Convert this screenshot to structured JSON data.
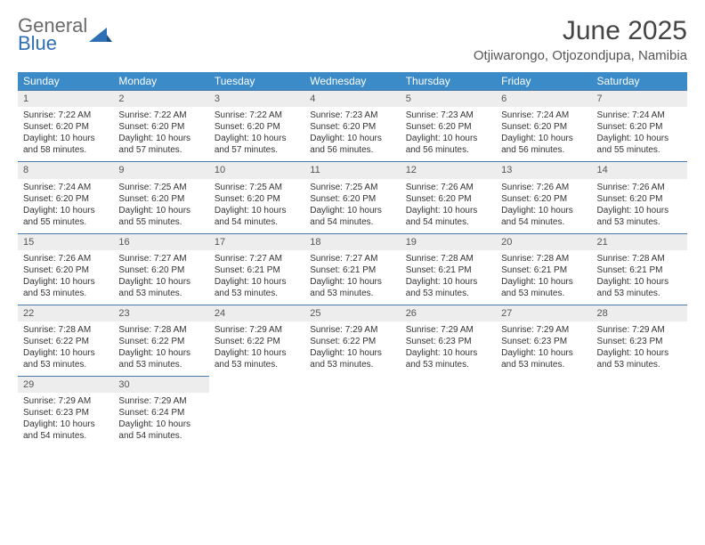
{
  "logo": {
    "text1": "General",
    "text2": "Blue"
  },
  "title": "June 2025",
  "subtitle": "Otjiwarongo, Otjozondjupa, Namibia",
  "colors": {
    "header_bg": "#3b8bc9",
    "header_text": "#ffffff",
    "daynum_bg": "#ededed",
    "daynum_border": "#4a79a8",
    "body_text": "#333333",
    "logo_gray": "#6a6a6a",
    "logo_blue": "#2f6fb5"
  },
  "weekdays": [
    "Sunday",
    "Monday",
    "Tuesday",
    "Wednesday",
    "Thursday",
    "Friday",
    "Saturday"
  ],
  "days": [
    {
      "num": "1",
      "sunrise": "Sunrise: 7:22 AM",
      "sunset": "Sunset: 6:20 PM",
      "daylight": "Daylight: 10 hours and 58 minutes."
    },
    {
      "num": "2",
      "sunrise": "Sunrise: 7:22 AM",
      "sunset": "Sunset: 6:20 PM",
      "daylight": "Daylight: 10 hours and 57 minutes."
    },
    {
      "num": "3",
      "sunrise": "Sunrise: 7:22 AM",
      "sunset": "Sunset: 6:20 PM",
      "daylight": "Daylight: 10 hours and 57 minutes."
    },
    {
      "num": "4",
      "sunrise": "Sunrise: 7:23 AM",
      "sunset": "Sunset: 6:20 PM",
      "daylight": "Daylight: 10 hours and 56 minutes."
    },
    {
      "num": "5",
      "sunrise": "Sunrise: 7:23 AM",
      "sunset": "Sunset: 6:20 PM",
      "daylight": "Daylight: 10 hours and 56 minutes."
    },
    {
      "num": "6",
      "sunrise": "Sunrise: 7:24 AM",
      "sunset": "Sunset: 6:20 PM",
      "daylight": "Daylight: 10 hours and 56 minutes."
    },
    {
      "num": "7",
      "sunrise": "Sunrise: 7:24 AM",
      "sunset": "Sunset: 6:20 PM",
      "daylight": "Daylight: 10 hours and 55 minutes."
    },
    {
      "num": "8",
      "sunrise": "Sunrise: 7:24 AM",
      "sunset": "Sunset: 6:20 PM",
      "daylight": "Daylight: 10 hours and 55 minutes."
    },
    {
      "num": "9",
      "sunrise": "Sunrise: 7:25 AM",
      "sunset": "Sunset: 6:20 PM",
      "daylight": "Daylight: 10 hours and 55 minutes."
    },
    {
      "num": "10",
      "sunrise": "Sunrise: 7:25 AM",
      "sunset": "Sunset: 6:20 PM",
      "daylight": "Daylight: 10 hours and 54 minutes."
    },
    {
      "num": "11",
      "sunrise": "Sunrise: 7:25 AM",
      "sunset": "Sunset: 6:20 PM",
      "daylight": "Daylight: 10 hours and 54 minutes."
    },
    {
      "num": "12",
      "sunrise": "Sunrise: 7:26 AM",
      "sunset": "Sunset: 6:20 PM",
      "daylight": "Daylight: 10 hours and 54 minutes."
    },
    {
      "num": "13",
      "sunrise": "Sunrise: 7:26 AM",
      "sunset": "Sunset: 6:20 PM",
      "daylight": "Daylight: 10 hours and 54 minutes."
    },
    {
      "num": "14",
      "sunrise": "Sunrise: 7:26 AM",
      "sunset": "Sunset: 6:20 PM",
      "daylight": "Daylight: 10 hours and 53 minutes."
    },
    {
      "num": "15",
      "sunrise": "Sunrise: 7:26 AM",
      "sunset": "Sunset: 6:20 PM",
      "daylight": "Daylight: 10 hours and 53 minutes."
    },
    {
      "num": "16",
      "sunrise": "Sunrise: 7:27 AM",
      "sunset": "Sunset: 6:20 PM",
      "daylight": "Daylight: 10 hours and 53 minutes."
    },
    {
      "num": "17",
      "sunrise": "Sunrise: 7:27 AM",
      "sunset": "Sunset: 6:21 PM",
      "daylight": "Daylight: 10 hours and 53 minutes."
    },
    {
      "num": "18",
      "sunrise": "Sunrise: 7:27 AM",
      "sunset": "Sunset: 6:21 PM",
      "daylight": "Daylight: 10 hours and 53 minutes."
    },
    {
      "num": "19",
      "sunrise": "Sunrise: 7:28 AM",
      "sunset": "Sunset: 6:21 PM",
      "daylight": "Daylight: 10 hours and 53 minutes."
    },
    {
      "num": "20",
      "sunrise": "Sunrise: 7:28 AM",
      "sunset": "Sunset: 6:21 PM",
      "daylight": "Daylight: 10 hours and 53 minutes."
    },
    {
      "num": "21",
      "sunrise": "Sunrise: 7:28 AM",
      "sunset": "Sunset: 6:21 PM",
      "daylight": "Daylight: 10 hours and 53 minutes."
    },
    {
      "num": "22",
      "sunrise": "Sunrise: 7:28 AM",
      "sunset": "Sunset: 6:22 PM",
      "daylight": "Daylight: 10 hours and 53 minutes."
    },
    {
      "num": "23",
      "sunrise": "Sunrise: 7:28 AM",
      "sunset": "Sunset: 6:22 PM",
      "daylight": "Daylight: 10 hours and 53 minutes."
    },
    {
      "num": "24",
      "sunrise": "Sunrise: 7:29 AM",
      "sunset": "Sunset: 6:22 PM",
      "daylight": "Daylight: 10 hours and 53 minutes."
    },
    {
      "num": "25",
      "sunrise": "Sunrise: 7:29 AM",
      "sunset": "Sunset: 6:22 PM",
      "daylight": "Daylight: 10 hours and 53 minutes."
    },
    {
      "num": "26",
      "sunrise": "Sunrise: 7:29 AM",
      "sunset": "Sunset: 6:23 PM",
      "daylight": "Daylight: 10 hours and 53 minutes."
    },
    {
      "num": "27",
      "sunrise": "Sunrise: 7:29 AM",
      "sunset": "Sunset: 6:23 PM",
      "daylight": "Daylight: 10 hours and 53 minutes."
    },
    {
      "num": "28",
      "sunrise": "Sunrise: 7:29 AM",
      "sunset": "Sunset: 6:23 PM",
      "daylight": "Daylight: 10 hours and 53 minutes."
    },
    {
      "num": "29",
      "sunrise": "Sunrise: 7:29 AM",
      "sunset": "Sunset: 6:23 PM",
      "daylight": "Daylight: 10 hours and 54 minutes."
    },
    {
      "num": "30",
      "sunrise": "Sunrise: 7:29 AM",
      "sunset": "Sunset: 6:24 PM",
      "daylight": "Daylight: 10 hours and 54 minutes."
    }
  ]
}
